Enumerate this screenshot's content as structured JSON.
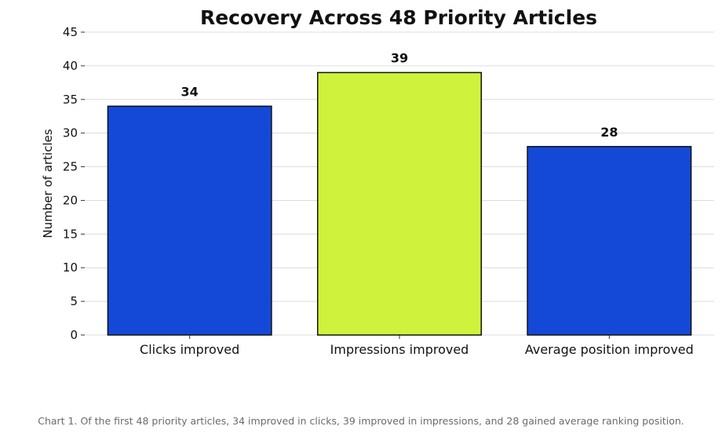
{
  "chart_data": {
    "type": "bar",
    "title": "Recovery Across 48 Priority Articles",
    "xlabel": "",
    "ylabel": "Number of articles",
    "categories": [
      "Clicks improved",
      "Impressions improved",
      "Average position improved"
    ],
    "values": [
      34,
      39,
      28
    ],
    "value_labels": [
      "34",
      "39",
      "28"
    ],
    "ylim": [
      0,
      45
    ],
    "yticks": [
      0,
      5,
      10,
      15,
      20,
      25,
      30,
      35,
      40,
      45
    ],
    "grid": "horizontal",
    "legend": "none",
    "bar_colors": [
      "#1449d8",
      "#cff23c",
      "#1449d8"
    ],
    "bar_edge_color": "#111111"
  },
  "caption": "Chart 1. Of the first 48 priority articles, 34 improved in clicks, 39 improved in impressions, and 28 gained average ranking position."
}
